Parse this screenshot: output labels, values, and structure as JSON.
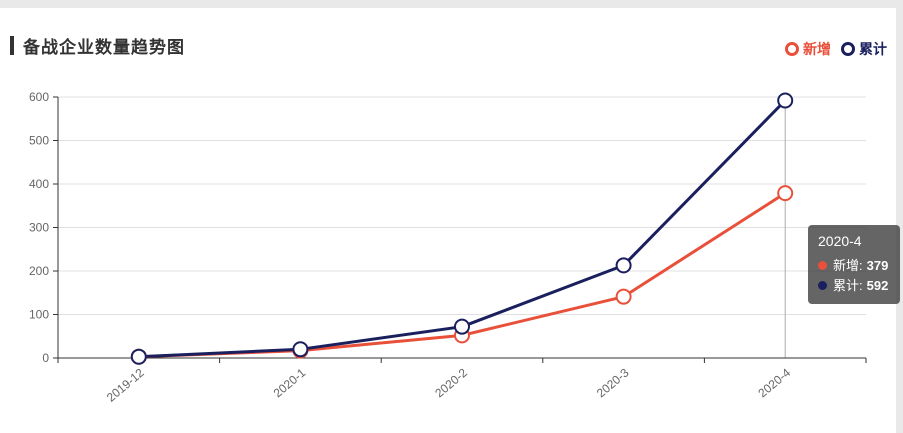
{
  "page": {
    "background_color": "#e9e9e9",
    "card_background_color": "#ffffff"
  },
  "header": {
    "title": "备战企业数量趋势图",
    "accent_bar_color": "#333333"
  },
  "legend": {
    "items": [
      {
        "label": "新增",
        "color": "#e8503a"
      },
      {
        "label": "累计",
        "color": "#1a1f5e"
      }
    ]
  },
  "chart_data": {
    "type": "line",
    "categories": [
      "2019-12",
      "2020-1",
      "2020-2",
      "2020-3",
      "2020-4"
    ],
    "series": [
      {
        "name": "新增",
        "color": "#e8503a",
        "values": [
          3,
          17,
          52,
          141,
          379
        ]
      },
      {
        "name": "累计",
        "color": "#1a1f5e",
        "values": [
          3,
          20,
          72,
          213,
          592
        ]
      }
    ],
    "title": "备战企业数量趋势图",
    "xlabel": "",
    "ylabel": "",
    "ylim": [
      0,
      600
    ],
    "yticks": [
      0,
      100,
      200,
      300,
      400,
      500,
      600
    ],
    "grid": true,
    "legend_position": "top-right",
    "axis_color": "#333333",
    "grid_color": "#e0e0e0",
    "tick_label_color": "#666666",
    "crosshair": {
      "category": "2020-4",
      "color": "#aaaaaa"
    },
    "hovered_category": "2020-4"
  },
  "tooltip": {
    "title": "2020-4",
    "rows": [
      {
        "label": "新增:",
        "value": "379",
        "color": "#e8503a"
      },
      {
        "label": "累计:",
        "value": "592",
        "color": "#1a1f5e"
      }
    ],
    "background": "rgba(50,50,50,0.75)",
    "text_color": "#ffffff"
  }
}
